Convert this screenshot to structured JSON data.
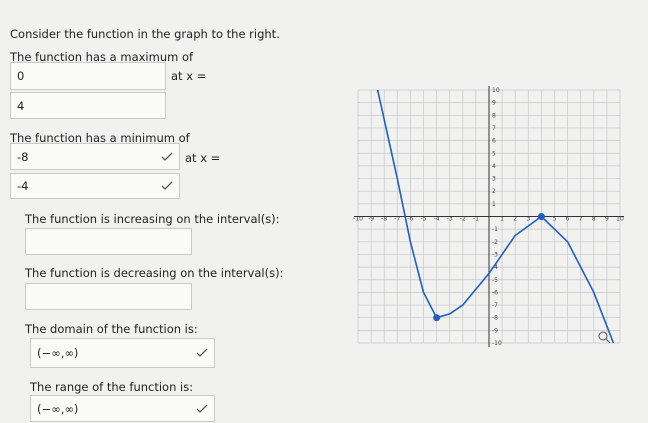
{
  "intro": "Consider the function in the graph to the right.",
  "q1": {
    "text": "The function has a maximum of",
    "answer": "0",
    "at": "at x =",
    "at_answer": "4"
  },
  "q2": {
    "text": "The function has a minimum of",
    "answer": "-8",
    "at": "at x =",
    "at_answer": "-4"
  },
  "q3": {
    "text": "The function is increasing on the interval(s):"
  },
  "q4": {
    "text": "The function is decreasing on the interval(s):"
  },
  "q5": {
    "text": "The domain of the function is:",
    "answer": "(−∞,∞)"
  },
  "q6": {
    "text": "The range of the function is:",
    "answer": "(−∞,∞)"
  },
  "graph": {
    "xlim": [
      -10,
      10
    ],
    "ylim": [
      -10,
      10
    ],
    "xticks": [
      -10,
      -9,
      -8,
      -7,
      -6,
      -5,
      -4,
      -3,
      -2,
      -1,
      1,
      2,
      3,
      4,
      5,
      6,
      7,
      8,
      9,
      10
    ],
    "yticks": [
      -10,
      -9,
      -8,
      -7,
      -6,
      -5,
      -4,
      -3,
      -2,
      -1,
      1,
      2,
      3,
      4,
      5,
      6,
      7,
      8,
      9,
      10
    ],
    "curve": {
      "x": [
        -8.5,
        -7,
        -6,
        -5,
        -4,
        -3,
        -2,
        0,
        2,
        4,
        6,
        8,
        9.5
      ],
      "y": [
        10,
        3,
        -2,
        -6,
        -8,
        -7.7,
        -7,
        -4.5,
        -1.5,
        0,
        -2,
        -6,
        -10
      ]
    },
    "maximum": [
      4,
      0
    ],
    "minimum": [
      -4,
      -8
    ],
    "color": "#1f5fbf"
  }
}
